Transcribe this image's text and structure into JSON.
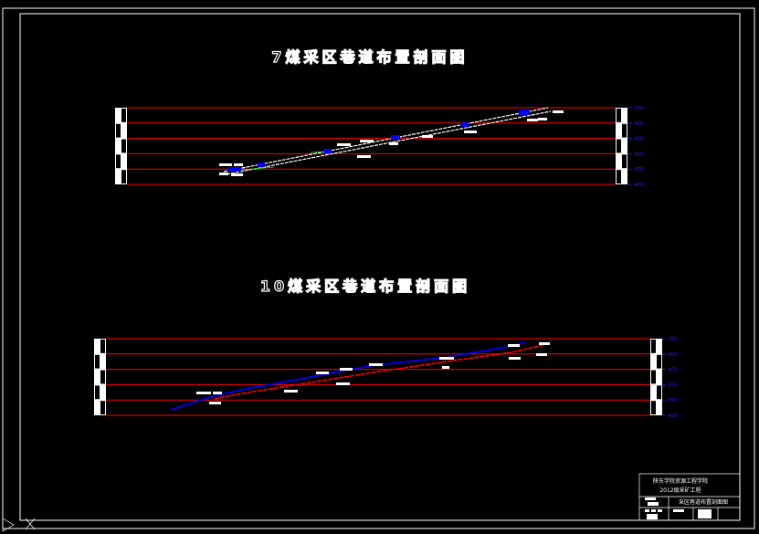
{
  "drawing": {
    "sections": [
      {
        "title": "7煤采区巷道布置剖面图",
        "elevation_labels": [
          "-350",
          "-400",
          "-450",
          "-500",
          "-550",
          "-600"
        ]
      },
      {
        "title": "10煤采区巷道布置剖面图",
        "elevation_labels": [
          "-350",
          "-400",
          "-450",
          "-500",
          "-550",
          "-600"
        ]
      }
    ],
    "title_block": {
      "school": "陕东学院资源工程学院",
      "class": "2012级采矿工程",
      "drawing_name": "采区巷道布置剖面图"
    },
    "colors": {
      "background": "#000000",
      "level_lines": "#ff0000",
      "roadway_blue": "#0000ff",
      "roadway_white": "#ffffff",
      "labels": "#2020ff"
    }
  }
}
